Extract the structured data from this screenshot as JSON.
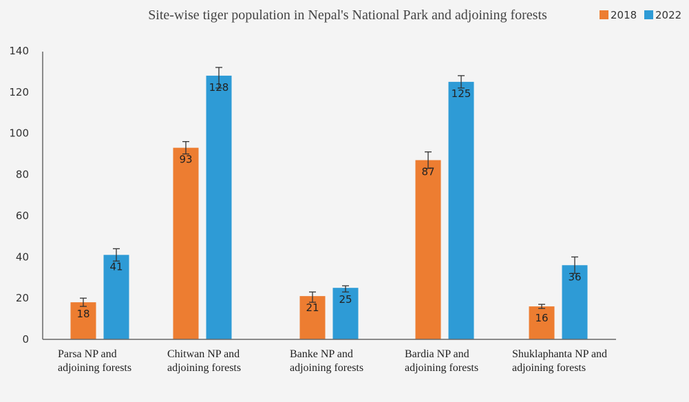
{
  "chart_data": {
    "type": "bar",
    "title": "Site-wise tiger population in Nepal's National Park and adjoining forests",
    "categories": [
      [
        "Parsa NP and",
        "adjoining forests"
      ],
      [
        "Chitwan NP and",
        "adjoining forests"
      ],
      [
        "Banke NP and",
        "adjoining forests"
      ],
      [
        "Bardia NP and",
        "adjoining forests"
      ],
      [
        "Shuklaphanta NP and",
        "adjoining forests"
      ]
    ],
    "series": [
      {
        "name": "2018",
        "color": "#ed7d31",
        "values": [
          18,
          93,
          21,
          87,
          16
        ],
        "error_low": [
          16,
          90,
          18,
          83,
          15
        ],
        "error_high": [
          20,
          96,
          23,
          91,
          17
        ]
      },
      {
        "name": "2022",
        "color": "#2e9bd6",
        "values": [
          41,
          128,
          25,
          125,
          36
        ],
        "error_low": [
          38,
          122,
          23,
          122,
          32
        ],
        "error_high": [
          44,
          132,
          26,
          128,
          40
        ]
      }
    ],
    "y_ticks": [
      0,
      20,
      40,
      60,
      80,
      100,
      120,
      140
    ],
    "ylim": [
      0,
      140
    ],
    "legend_position": "top-right",
    "grid": false
  }
}
